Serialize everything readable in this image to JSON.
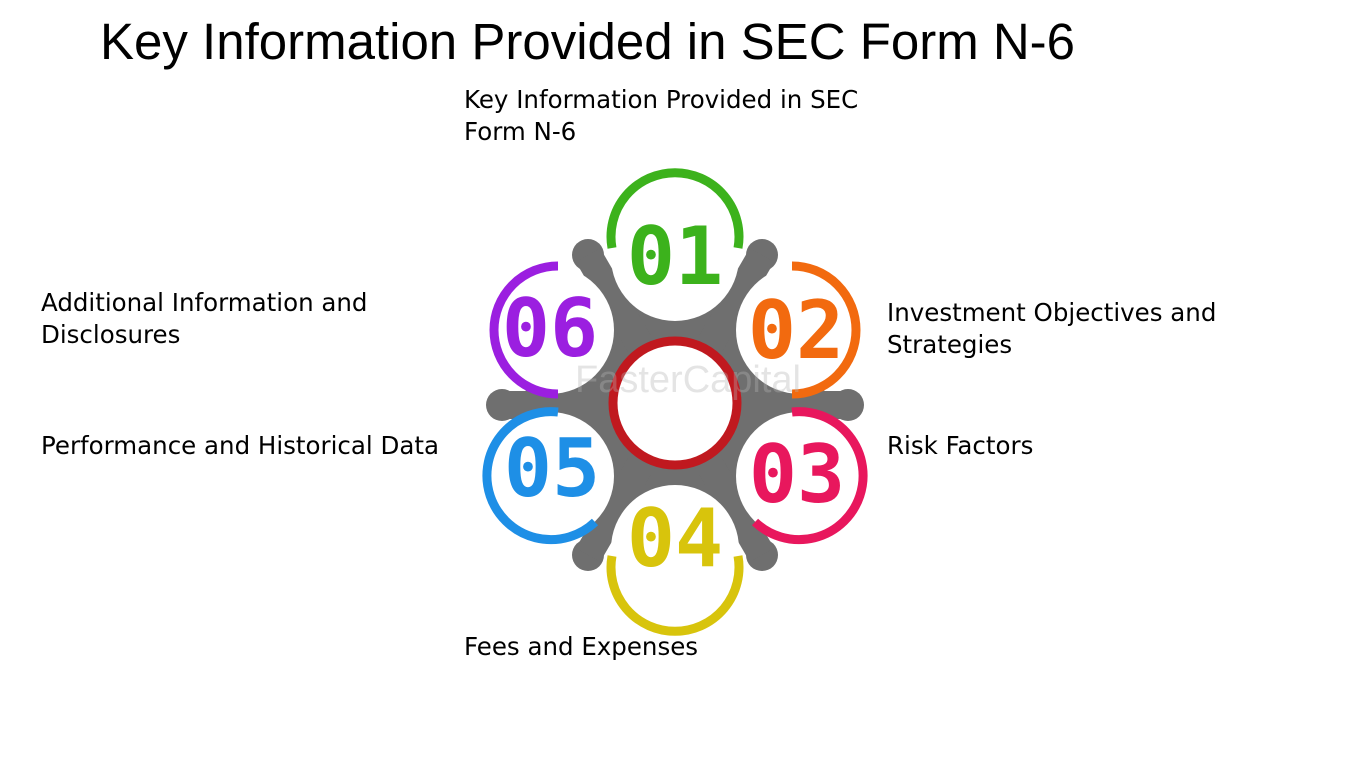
{
  "title": "Key Information Provided in SEC Form N-6",
  "center_label": "Key Information Provided in SEC Form N-6",
  "items": [
    {
      "number": "01",
      "label": "",
      "color": "#3cb21c"
    },
    {
      "number": "02",
      "label": "Investment Objectives and Strategies",
      "color": "#f26a0f"
    },
    {
      "number": "03",
      "label": "Risk Factors",
      "color": "#e8175d"
    },
    {
      "number": "04",
      "label": "Fees and Expenses",
      "color": "#d8c40c"
    },
    {
      "number": "05",
      "label": "Performance and Historical Data",
      "color": "#1e8fe6"
    },
    {
      "number": "06",
      "label": "Additional Information and Disclosures",
      "color": "#9b1fe0"
    }
  ],
  "hub_color": "#c0191f",
  "gear_color": "#6f6f6f",
  "watermark": "FasterCapital"
}
